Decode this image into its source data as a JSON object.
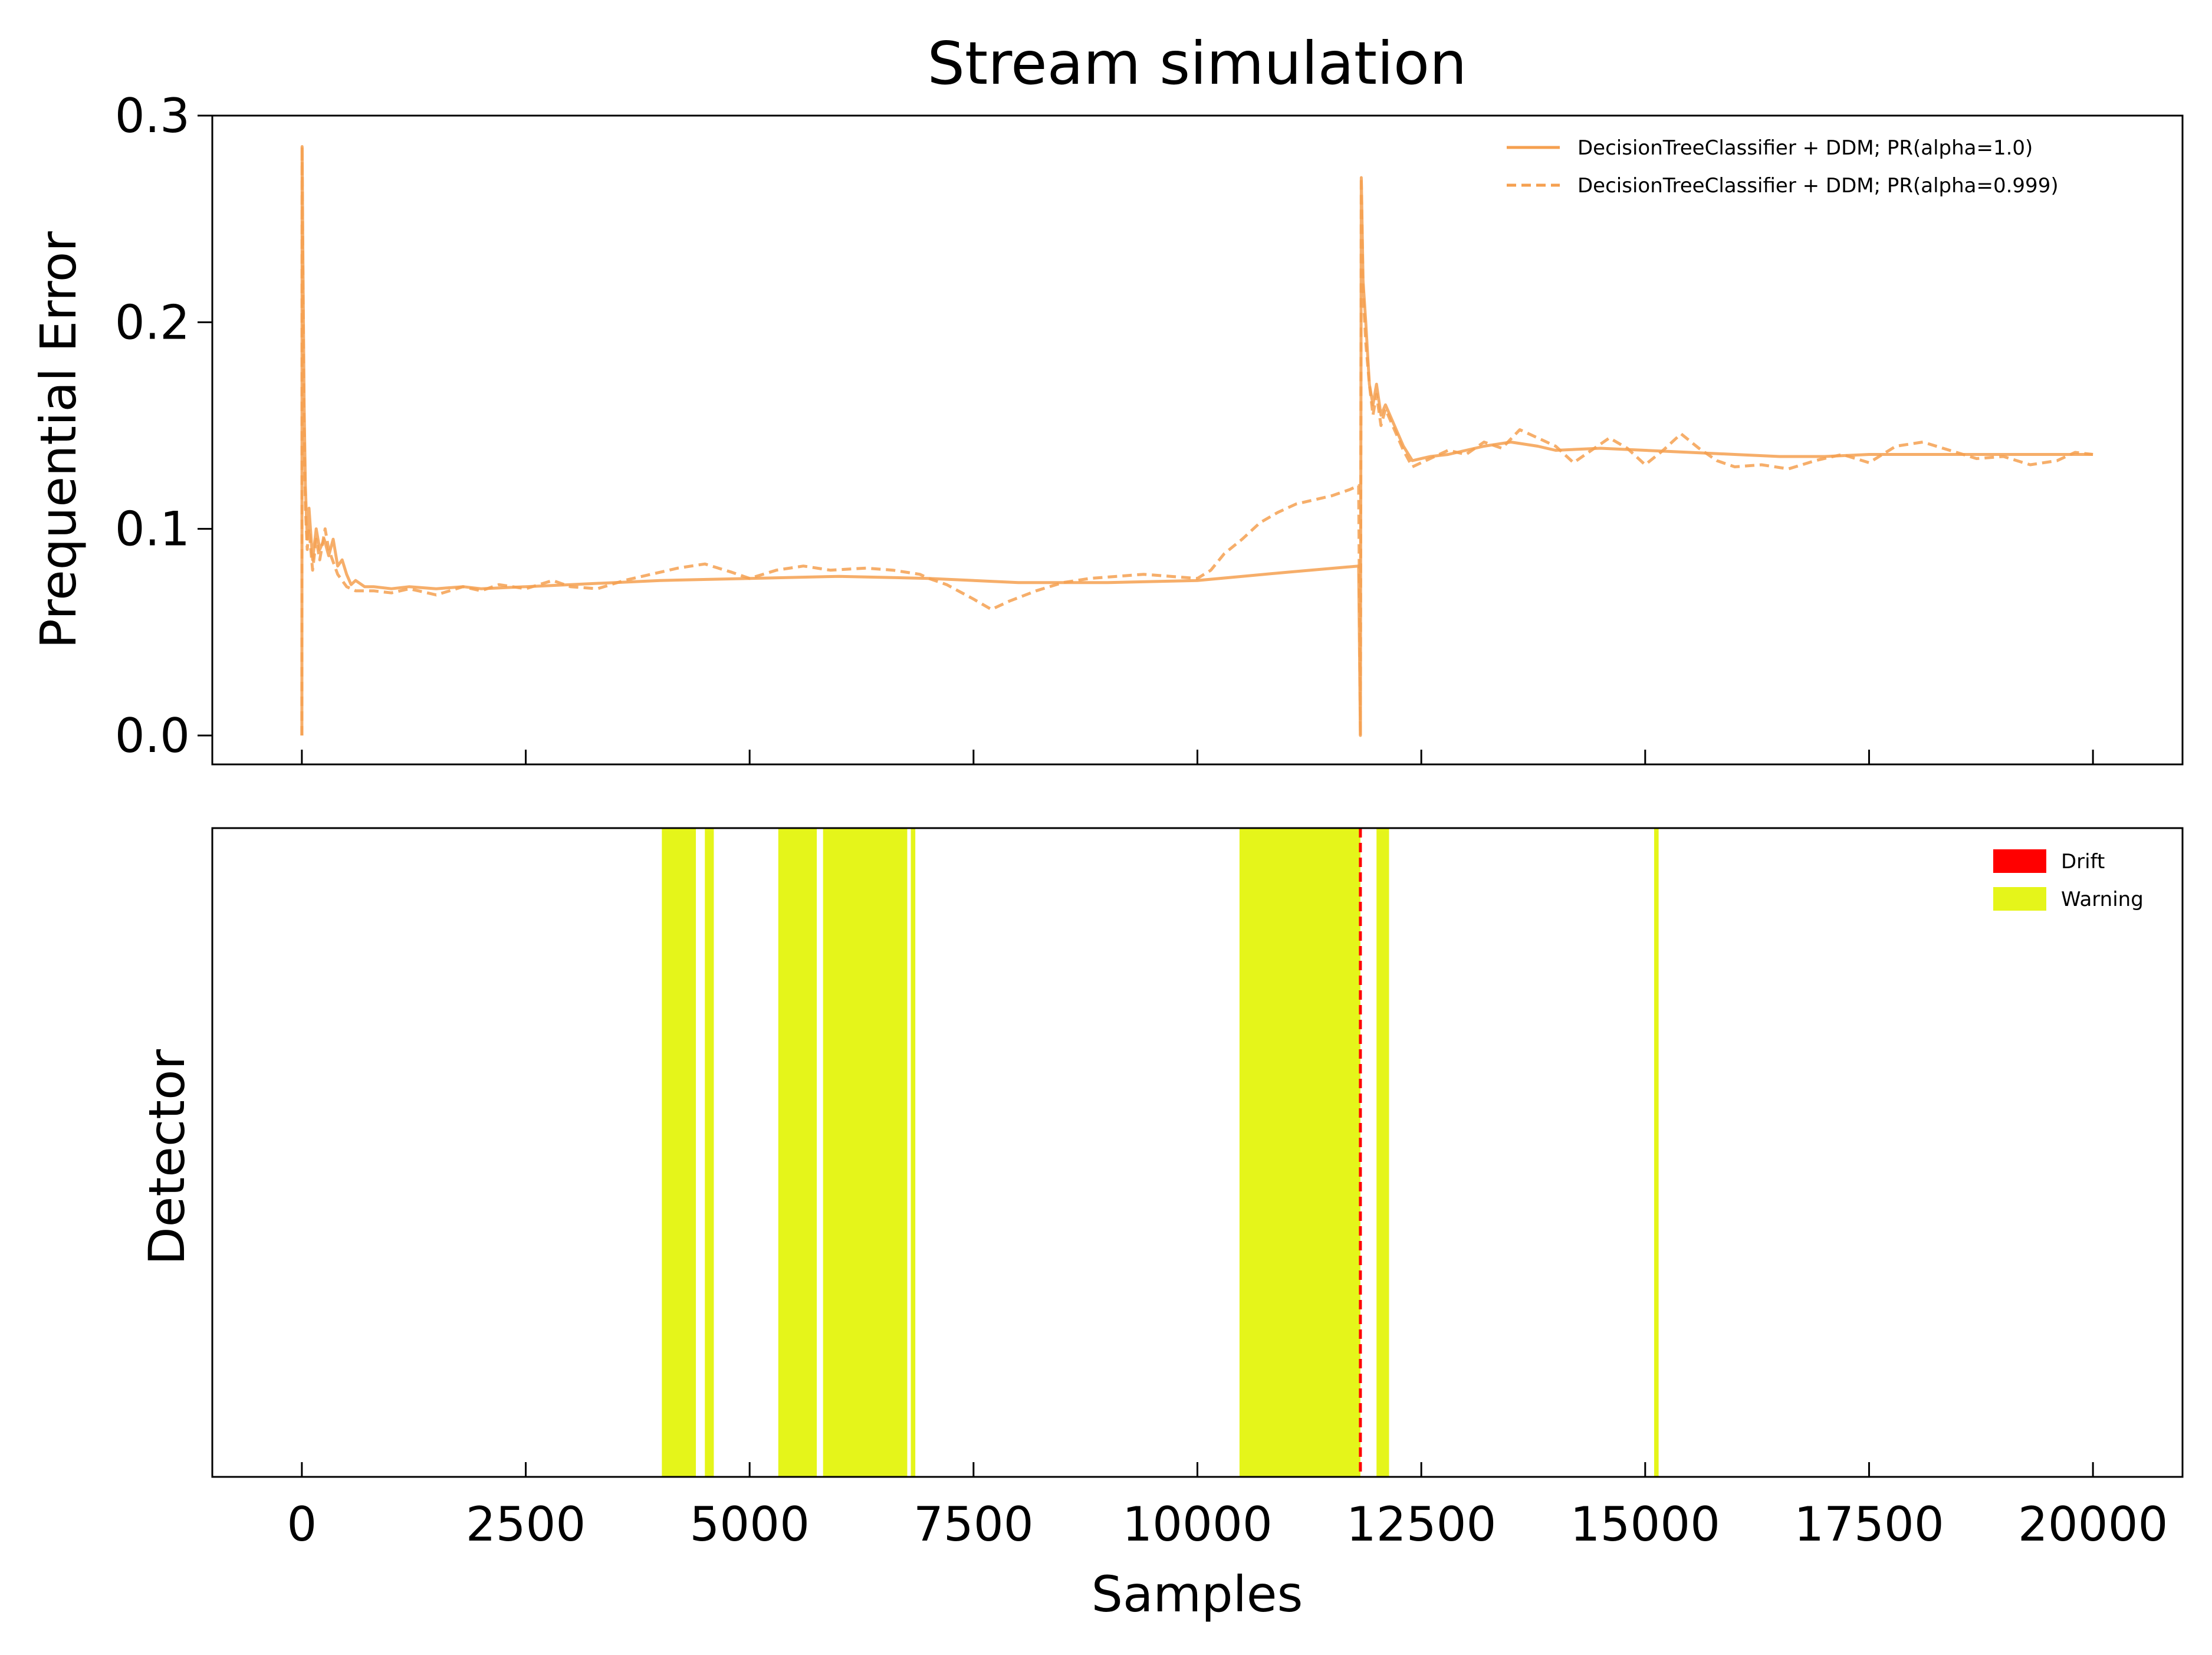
{
  "chart_data": {
    "type": "line",
    "title": "Stream simulation",
    "xlabel": "Samples",
    "xlim": [
      -1000,
      21000
    ],
    "xticks": [
      0,
      2500,
      5000,
      7500,
      10000,
      12500,
      15000,
      17500,
      20000
    ],
    "colors": {
      "error_line": "#f5a050",
      "warning": "#e5f51a",
      "drift": "#ff0000"
    },
    "error_panel": {
      "ylabel": "Prequential Error",
      "ylim": [
        -0.014,
        0.3
      ],
      "yticks": [
        0.0,
        0.1,
        0.2,
        0.3
      ],
      "ytick_labels": [
        "0.0",
        "0.1",
        "0.2",
        "0.3"
      ],
      "legend_position": "top-right",
      "series": [
        {
          "name": "DecisionTreeClassifier + DDM; PR(alpha=1.0)",
          "line_style": "solid",
          "points": [
            [
              0,
              0.0
            ],
            [
              3,
              0.285
            ],
            [
              10,
              0.24
            ],
            [
              25,
              0.16
            ],
            [
              40,
              0.12
            ],
            [
              60,
              0.095
            ],
            [
              80,
              0.11
            ],
            [
              120,
              0.085
            ],
            [
              160,
              0.1
            ],
            [
              200,
              0.09
            ],
            [
              250,
              0.095
            ],
            [
              300,
              0.087
            ],
            [
              350,
              0.095
            ],
            [
              400,
              0.082
            ],
            [
              450,
              0.085
            ],
            [
              500,
              0.078
            ],
            [
              550,
              0.073
            ],
            [
              600,
              0.075
            ],
            [
              700,
              0.072
            ],
            [
              800,
              0.072
            ],
            [
              1000,
              0.071
            ],
            [
              1200,
              0.072
            ],
            [
              1500,
              0.071
            ],
            [
              1800,
              0.072
            ],
            [
              2000,
              0.071
            ],
            [
              2500,
              0.072
            ],
            [
              3000,
              0.073
            ],
            [
              3500,
              0.074
            ],
            [
              4000,
              0.075
            ],
            [
              5000,
              0.076
            ],
            [
              6000,
              0.077
            ],
            [
              7000,
              0.076
            ],
            [
              8000,
              0.074
            ],
            [
              9000,
              0.074
            ],
            [
              10000,
              0.075
            ],
            [
              10500,
              0.077
            ],
            [
              11000,
              0.079
            ],
            [
              11800,
              0.082
            ],
            [
              11820,
              0.0
            ],
            [
              11830,
              0.27
            ],
            [
              11850,
              0.22
            ],
            [
              11880,
              0.2
            ],
            [
              11920,
              0.17
            ],
            [
              11960,
              0.16
            ],
            [
              12000,
              0.17
            ],
            [
              12050,
              0.155
            ],
            [
              12100,
              0.16
            ],
            [
              12200,
              0.15
            ],
            [
              12300,
              0.14
            ],
            [
              12400,
              0.133
            ],
            [
              12600,
              0.135
            ],
            [
              12800,
              0.136
            ],
            [
              13000,
              0.138
            ],
            [
              13200,
              0.14
            ],
            [
              13500,
              0.142
            ],
            [
              13800,
              0.14
            ],
            [
              14000,
              0.138
            ],
            [
              14500,
              0.139
            ],
            [
              15000,
              0.138
            ],
            [
              15500,
              0.137
            ],
            [
              16000,
              0.136
            ],
            [
              16500,
              0.135
            ],
            [
              17000,
              0.135
            ],
            [
              17500,
              0.136
            ],
            [
              18000,
              0.136
            ],
            [
              18500,
              0.136
            ],
            [
              19000,
              0.136
            ],
            [
              19500,
              0.136
            ],
            [
              20000,
              0.136
            ]
          ]
        },
        {
          "name": "DecisionTreeClassifier + DDM; PR(alpha=0.999)",
          "line_style": "dashed",
          "points": [
            [
              0,
              0.0
            ],
            [
              3,
              0.285
            ],
            [
              10,
              0.23
            ],
            [
              25,
              0.15
            ],
            [
              40,
              0.11
            ],
            [
              60,
              0.09
            ],
            [
              80,
              0.1
            ],
            [
              120,
              0.08
            ],
            [
              160,
              0.095
            ],
            [
              200,
              0.085
            ],
            [
              260,
              0.1
            ],
            [
              300,
              0.09
            ],
            [
              400,
              0.078
            ],
            [
              500,
              0.072
            ],
            [
              600,
              0.07
            ],
            [
              800,
              0.07
            ],
            [
              1000,
              0.069
            ],
            [
              1200,
              0.071
            ],
            [
              1500,
              0.068
            ],
            [
              1800,
              0.072
            ],
            [
              2000,
              0.07
            ],
            [
              2200,
              0.073
            ],
            [
              2500,
              0.071
            ],
            [
              2800,
              0.075
            ],
            [
              3000,
              0.072
            ],
            [
              3300,
              0.071
            ],
            [
              3600,
              0.075
            ],
            [
              3900,
              0.078
            ],
            [
              4200,
              0.081
            ],
            [
              4500,
              0.083
            ],
            [
              4800,
              0.079
            ],
            [
              5000,
              0.076
            ],
            [
              5300,
              0.08
            ],
            [
              5600,
              0.082
            ],
            [
              5900,
              0.08
            ],
            [
              6300,
              0.081
            ],
            [
              6600,
              0.08
            ],
            [
              6900,
              0.078
            ],
            [
              7000,
              0.076
            ],
            [
              7200,
              0.073
            ],
            [
              7500,
              0.066
            ],
            [
              7700,
              0.061
            ],
            [
              7900,
              0.065
            ],
            [
              8200,
              0.07
            ],
            [
              8500,
              0.074
            ],
            [
              8800,
              0.076
            ],
            [
              9100,
              0.077
            ],
            [
              9400,
              0.078
            ],
            [
              9700,
              0.077
            ],
            [
              10000,
              0.076
            ],
            [
              10150,
              0.08
            ],
            [
              10300,
              0.088
            ],
            [
              10500,
              0.095
            ],
            [
              10700,
              0.103
            ],
            [
              10900,
              0.108
            ],
            [
              11100,
              0.112
            ],
            [
              11300,
              0.114
            ],
            [
              11500,
              0.116
            ],
            [
              11700,
              0.119
            ],
            [
              11800,
              0.121
            ],
            [
              11820,
              0.0
            ],
            [
              11830,
              0.27
            ],
            [
              11850,
              0.215
            ],
            [
              11880,
              0.19
            ],
            [
              11920,
              0.17
            ],
            [
              11960,
              0.155
            ],
            [
              12000,
              0.165
            ],
            [
              12050,
              0.15
            ],
            [
              12100,
              0.158
            ],
            [
              12200,
              0.148
            ],
            [
              12300,
              0.138
            ],
            [
              12400,
              0.13
            ],
            [
              12600,
              0.134
            ],
            [
              12800,
              0.138
            ],
            [
              13000,
              0.136
            ],
            [
              13200,
              0.142
            ],
            [
              13400,
              0.139
            ],
            [
              13600,
              0.148
            ],
            [
              13800,
              0.144
            ],
            [
              14000,
              0.14
            ],
            [
              14200,
              0.132
            ],
            [
              14400,
              0.138
            ],
            [
              14600,
              0.144
            ],
            [
              14800,
              0.139
            ],
            [
              15000,
              0.131
            ],
            [
              15200,
              0.138
            ],
            [
              15400,
              0.146
            ],
            [
              15600,
              0.139
            ],
            [
              15800,
              0.133
            ],
            [
              16000,
              0.13
            ],
            [
              16300,
              0.131
            ],
            [
              16600,
              0.129
            ],
            [
              16900,
              0.133
            ],
            [
              17200,
              0.136
            ],
            [
              17500,
              0.132
            ],
            [
              17800,
              0.14
            ],
            [
              18100,
              0.142
            ],
            [
              18400,
              0.138
            ],
            [
              18700,
              0.134
            ],
            [
              19000,
              0.135
            ],
            [
              19300,
              0.131
            ],
            [
              19600,
              0.133
            ],
            [
              19800,
              0.137
            ],
            [
              20000,
              0.136
            ]
          ]
        }
      ]
    },
    "detector_panel": {
      "ylabel": "Detector",
      "legend_position": "top-right",
      "drift_label": "Drift",
      "warning_label": "Warning",
      "drift_points": [
        11820
      ],
      "warning_ranges": [
        [
          4020,
          4400
        ],
        [
          4500,
          4600
        ],
        [
          5320,
          5750
        ],
        [
          5820,
          6760
        ],
        [
          6800,
          6850
        ],
        [
          10470,
          11820
        ],
        [
          12000,
          12140
        ],
        [
          15100,
          15150
        ]
      ]
    }
  }
}
